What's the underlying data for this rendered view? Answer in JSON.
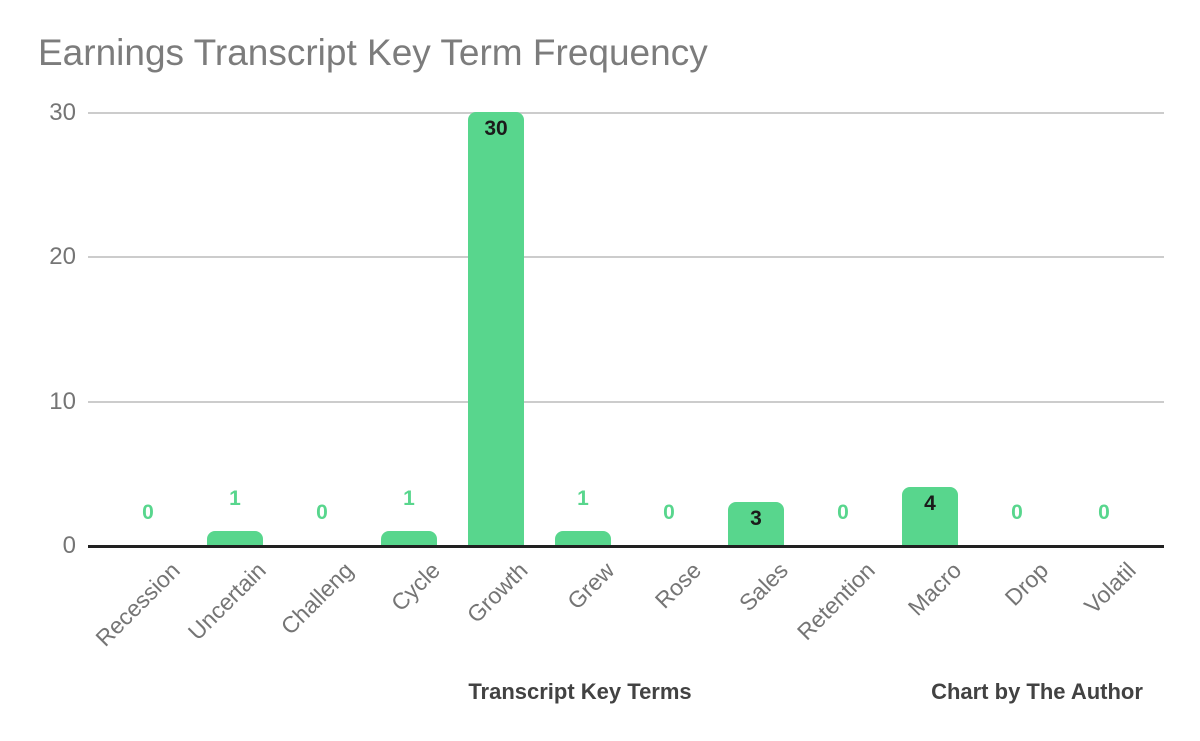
{
  "chart_data": {
    "type": "bar",
    "title": "Earnings Transcript Key Term Frequency",
    "categories": [
      "Recession",
      "Uncertain",
      "Challeng",
      "Cycle",
      "Growth",
      "Grew",
      "Rose",
      "Sales",
      "Retention",
      "Macro",
      "Drop",
      "Volatil"
    ],
    "values": [
      0,
      1,
      0,
      1,
      30,
      1,
      0,
      3,
      0,
      4,
      0,
      0
    ],
    "xlabel": "Transcript Key Terms",
    "ylabel": "",
    "ylim": [
      0,
      30
    ],
    "yticks": [
      0,
      10,
      20,
      30
    ],
    "grid": true,
    "legend": "none",
    "annotation": "Chart by The Author",
    "colors": {
      "bar": "#58d68d",
      "label_outside": "#58d68d",
      "label_inside": "#1b1b1b",
      "title": "#7c7c7c",
      "axis_text": "#757575",
      "gridline": "#cccccc",
      "baseline": "#212121",
      "axis_title_text": "#424242",
      "background": "#ffffff"
    }
  }
}
